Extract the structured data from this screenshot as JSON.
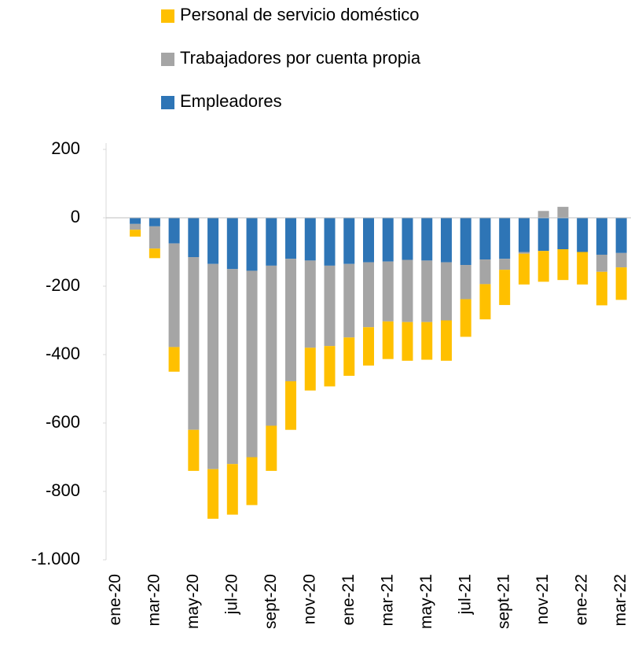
{
  "chart_data": {
    "type": "bar",
    "stacked": true,
    "categories": [
      "ene-20",
      null,
      "mar-20",
      null,
      "may-20",
      null,
      "jul-20",
      null,
      "sept-20",
      null,
      "nov-20",
      null,
      "ene-21",
      null,
      "mar-21",
      null,
      "may-21",
      null,
      "jul-21",
      null,
      "sept-21",
      null,
      "nov-21",
      null,
      "ene-22",
      null,
      "mar-22"
    ],
    "series": [
      {
        "name": "Empleadores",
        "color": "#2e75b6",
        "values": [
          0,
          -18,
          -25,
          -75,
          -115,
          -135,
          -150,
          -155,
          -140,
          -120,
          -125,
          -140,
          -135,
          -130,
          -128,
          -123,
          -125,
          -130,
          -138,
          -122,
          -120,
          -100,
          -97,
          -92,
          -100,
          -108,
          -103
        ]
      },
      {
        "name": "Trabajadores por cuenta propia",
        "color": "#a5a5a5",
        "values": [
          0,
          -17,
          -65,
          -303,
          -505,
          -600,
          -570,
          -545,
          -468,
          -358,
          -255,
          -235,
          -215,
          -190,
          -175,
          -182,
          -180,
          -170,
          -100,
          -72,
          -32,
          -5,
          20,
          32,
          0,
          -50,
          -42
        ]
      },
      {
        "name": "Personal de servicio doméstico",
        "color": "#ffc000",
        "values": [
          0,
          -20,
          -28,
          -72,
          -120,
          -145,
          -148,
          -140,
          -132,
          -142,
          -125,
          -118,
          -112,
          -112,
          -110,
          -113,
          -110,
          -118,
          -110,
          -103,
          -103,
          -90,
          -90,
          -90,
          -95,
          -98,
          -95
        ]
      }
    ],
    "ylim": [
      -1000,
      200
    ],
    "yticks": [
      200,
      0,
      -200,
      -400,
      -600,
      -800,
      {
        "value": -1000,
        "label": "-1.000"
      }
    ],
    "legend": "top"
  }
}
